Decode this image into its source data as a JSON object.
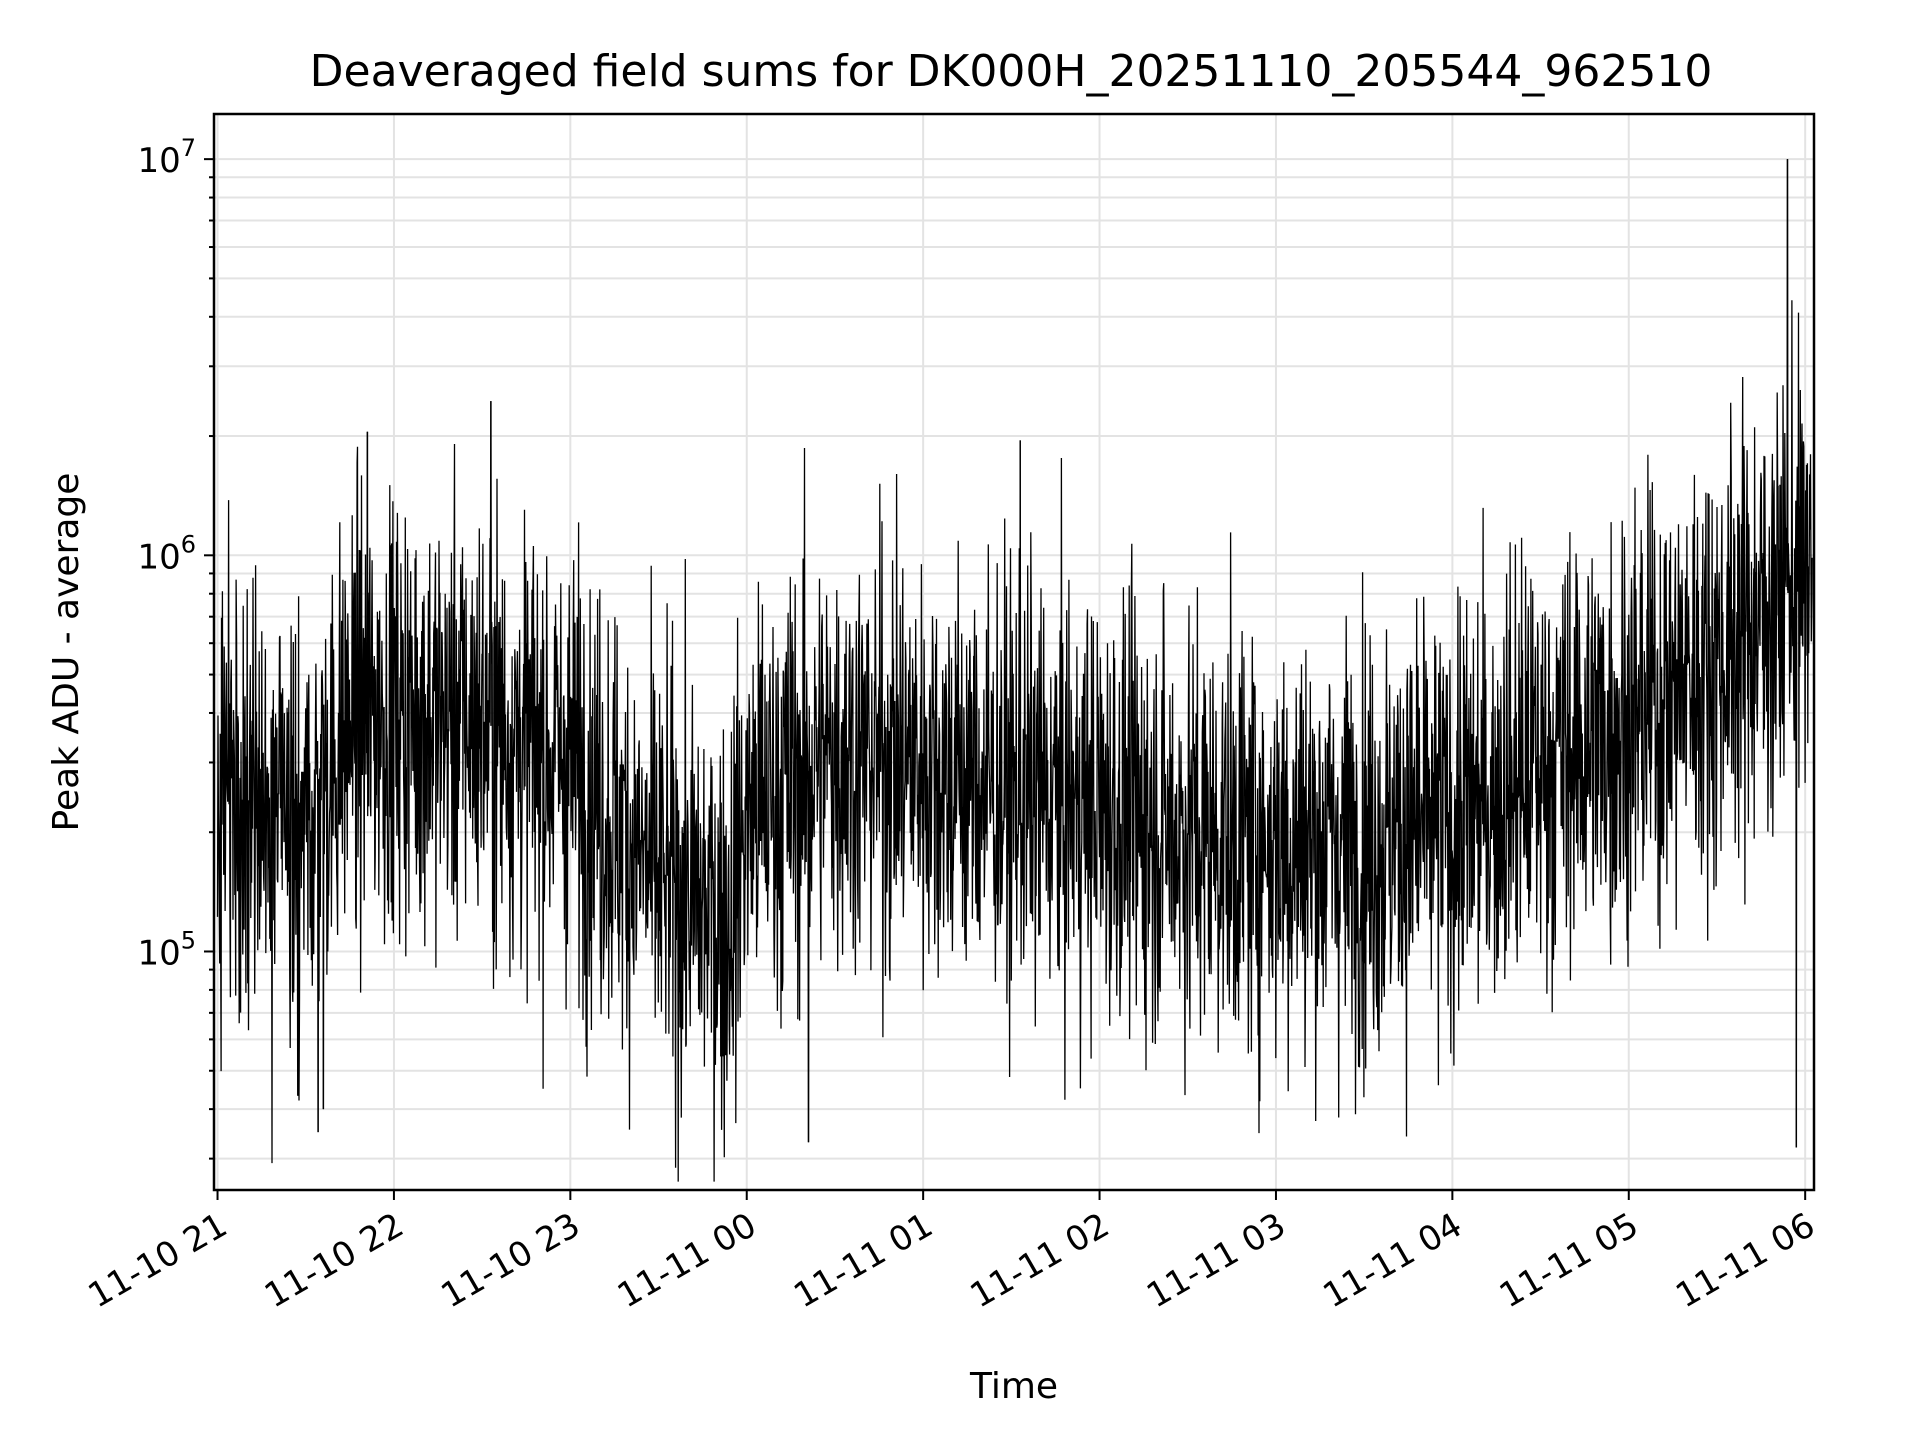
{
  "chart_data": {
    "type": "line",
    "title": "Deaveraged field sums for DK000H_20251110_205544_962510",
    "xlabel": "Time",
    "ylabel": "Peak ADU - average",
    "yscale": "log",
    "ylim": [
      25000,
      13000000
    ],
    "xlim_hours": [
      -0.02,
      9.05
    ],
    "x_ticks": [
      "11-10 21",
      "11-10 22",
      "11-10 23",
      "11-11 00",
      "11-11 01",
      "11-11 02",
      "11-11 03",
      "11-11 04",
      "11-11 05",
      "11-11 06"
    ],
    "y_ticks": [
      {
        "base": "10",
        "exp": "5",
        "value": 100000
      },
      {
        "base": "10",
        "exp": "6",
        "value": 1000000
      },
      {
        "base": "10",
        "exp": "7",
        "value": 10000000
      }
    ],
    "grid": true,
    "line_color": "#000000",
    "series": [
      {
        "name": "peak_adu_minus_average",
        "note": "approximate envelope of a dense noisy series: hours since 11-10 21:00 and typical level (ADU)",
        "x": [
          0.0,
          0.5,
          0.75,
          1.0,
          1.5,
          2.0,
          2.5,
          2.9,
          3.0,
          3.5,
          4.0,
          4.5,
          5.0,
          5.5,
          6.0,
          6.5,
          7.0,
          7.5,
          8.0,
          8.5,
          9.0
        ],
        "values": [
          250000,
          200000,
          380000,
          400000,
          380000,
          300000,
          150000,
          120000,
          220000,
          320000,
          300000,
          250000,
          230000,
          200000,
          190000,
          190000,
          210000,
          300000,
          380000,
          550000,
          900000
        ]
      }
    ],
    "spikes": [
      {
        "x": 1.55,
        "value": 2450000
      },
      {
        "x": 0.85,
        "value": 2050000
      },
      {
        "x": 4.55,
        "value": 1950000
      },
      {
        "x": 8.9,
        "value": 10000000
      },
      {
        "x": 8.95,
        "value": 32000
      },
      {
        "x": 3.35,
        "value": 33000
      },
      {
        "x": 0.57,
        "value": 35000
      },
      {
        "x": 0.6,
        "value": 40000
      }
    ]
  }
}
